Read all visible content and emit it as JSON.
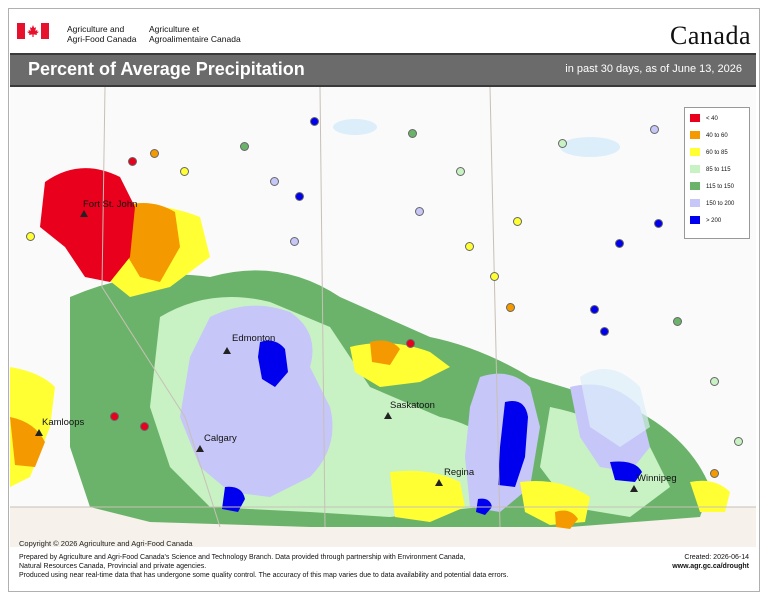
{
  "header": {
    "org_en_line1": "Agriculture and",
    "org_en_line2": "Agri-Food Canada",
    "org_fr_line1": "Agriculture et",
    "org_fr_line2": "Agroalimentaire Canada",
    "wordmark": "Canada"
  },
  "titlebar": {
    "title": "Percent of Average Precipitation",
    "subtitle": "in past 30 days, as of June 13, 2026"
  },
  "legend": {
    "items": [
      {
        "label": "< 40",
        "color": "#e8001c"
      },
      {
        "label": "40 to 60",
        "color": "#f49a00"
      },
      {
        "label": "60 to 85",
        "color": "#ffff33"
      },
      {
        "label": "85 to 115",
        "color": "#c8f2c4"
      },
      {
        "label": "115 to 150",
        "color": "#6bb36a"
      },
      {
        "label": "150 to 200",
        "color": "#c6c6f8"
      },
      {
        "label": "> 200",
        "color": "#0000ee"
      }
    ]
  },
  "cities": {
    "fort_st_john": "Fort St. John",
    "edmonton": "Edmonton",
    "kamloops": "Kamloops",
    "calgary": "Calgary",
    "saskatoon": "Saskatoon",
    "regina": "Regina",
    "winnipeg": "Winnipeg"
  },
  "footer": {
    "copyright": "Copyright © 2026 Agriculture and Agri-Food Canada",
    "line1": "Prepared by Agriculture and Agri-Food Canada's Science and Technology Branch. Data provided through partnership with Environment Canada,",
    "line2": "Natural Resources Canada, Provincial and private agencies.",
    "line3": "Produced using near real-time data that has undergone some quality control. The accuracy of this map varies due to data availability and potential data errors.",
    "created": "Created: 2026-06-14",
    "url": "www.agr.gc.ca/drought"
  },
  "colors": {
    "title_bar": "#6b6b6b",
    "flag_red": "#e8112d"
  }
}
